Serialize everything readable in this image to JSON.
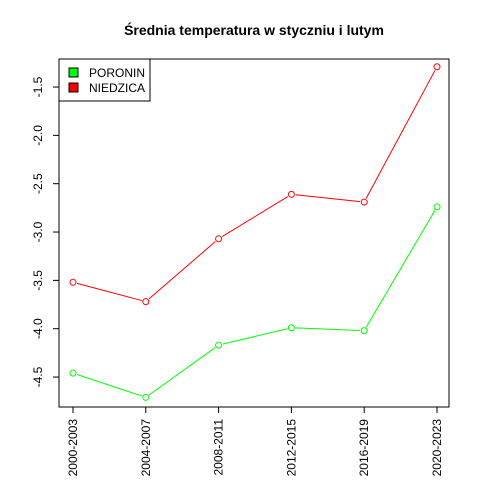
{
  "chart_data": {
    "type": "line",
    "title": "Średnia temperatura w styczniu i lutym",
    "xlabel": "",
    "ylabel": "",
    "categories": [
      "2000-2003",
      "2004-2007",
      "2008-2011",
      "2012-2015",
      "2016-2019",
      "2020-2023"
    ],
    "ylim": [
      -4.81,
      -1.21
    ],
    "yticks": [
      -4.5,
      -4.0,
      -3.5,
      -3.0,
      -2.5,
      -2.0,
      -1.5
    ],
    "ytick_labels": [
      "-4.5",
      "-4.0",
      "-3.5",
      "-3.0",
      "-2.5",
      "-2.0",
      "-1.5"
    ],
    "grid": false,
    "legend_position": "top-left",
    "series": [
      {
        "name": "PORONIN",
        "color": "#00ff00",
        "values": [
          -4.46,
          -4.71,
          -4.17,
          -3.99,
          -4.02,
          -2.74
        ]
      },
      {
        "name": "NIEDZICA",
        "color": "#ff0000",
        "values": [
          -3.52,
          -3.72,
          -3.07,
          -2.61,
          -2.69,
          -1.29
        ]
      }
    ]
  }
}
